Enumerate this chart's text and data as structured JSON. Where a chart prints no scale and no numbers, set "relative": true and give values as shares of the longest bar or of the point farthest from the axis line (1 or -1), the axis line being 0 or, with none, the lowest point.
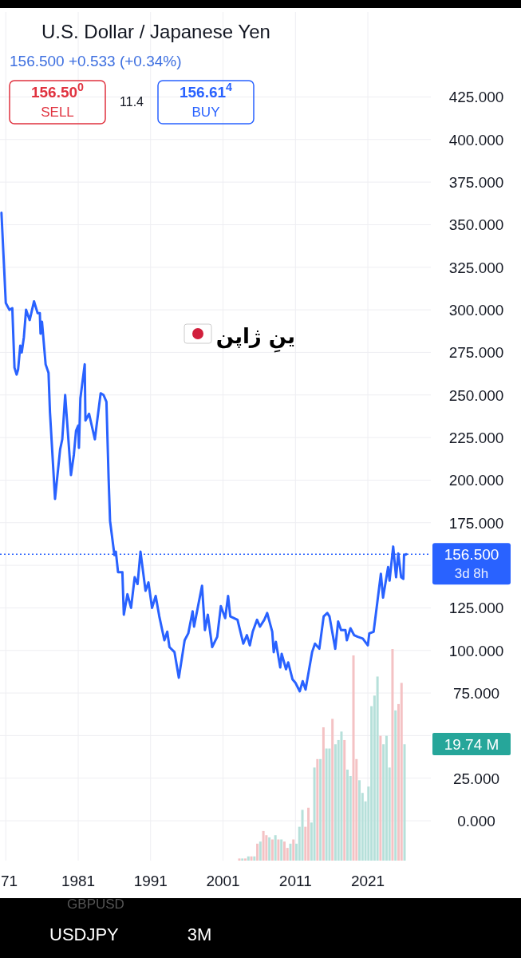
{
  "chart_data": [
    {
      "type": "line",
      "title": "U.S. Dollar / Japanese Yen",
      "subtitle": "156.500 +0.533 (+0.34%)",
      "x": [
        1970.4,
        1971.0,
        1971.5,
        1971.9,
        1972.2,
        1972.5,
        1972.7,
        1973.0,
        1973.2,
        1973.5,
        1973.8,
        1974.3,
        1974.9,
        1975.4,
        1975.7,
        1975.8,
        1976.0,
        1976.5,
        1976.9,
        1977.1,
        1977.8,
        1978.5,
        1978.8,
        1979.2,
        1980.0,
        1980.4,
        1980.7,
        1981.0,
        1981.1,
        1981.3,
        1981.9,
        1982.0,
        1982.5,
        1983.3,
        1984.1,
        1984.5,
        1984.9,
        1985.2,
        1985.4,
        1986.0,
        1986.2,
        1986.5,
        1987.1,
        1987.3,
        1987.8,
        1988.3,
        1988.8,
        1989.2,
        1989.6,
        1990.3,
        1990.7,
        1991.2,
        1991.7,
        1992.2,
        1992.9,
        1993.3,
        1993.6,
        1994.3,
        1994.9,
        1995.7,
        1996.2,
        1996.8,
        1997.0,
        1998.1,
        1998.5,
        1998.9,
        1999.5,
        2000.2,
        2000.7,
        2001.3,
        2001.7,
        2002.0,
        2003.0,
        2003.8,
        2004.3,
        2004.7,
        2005.1,
        2005.7,
        2006.1,
        2006.7,
        2007.1,
        2007.8,
        2008.0,
        2008.3,
        2008.9,
        2009.1,
        2009.7,
        2010.0,
        2010.6,
        2011.0,
        2011.6,
        2012.0,
        2012.4,
        2013.3,
        2013.7,
        2014.3,
        2014.9,
        2015.4,
        2015.7,
        2016.5,
        2016.9,
        2017.3,
        2017.9,
        2018.1,
        2018.6,
        2019.1,
        2019.6,
        2020.3,
        2021.0,
        2021.2,
        2021.8,
        2022.8,
        2023.1,
        2023.8,
        2024.0,
        2024.5,
        2024.9,
        2025.2,
        2025.6,
        2025.9,
        2026.0,
        2026.3
      ],
      "series": [
        {
          "color": "#2962ff",
          "values": [
            357,
            304,
            300,
            301,
            266,
            262,
            265,
            279,
            275,
            284,
            300,
            294,
            305,
            298,
            298,
            286,
            293,
            268,
            263,
            240,
            189,
            218,
            224,
            250,
            203,
            215,
            229,
            232,
            219,
            248,
            268,
            235,
            239,
            224,
            251,
            250,
            246,
            201,
            176,
            156,
            158,
            146,
            146,
            121,
            133,
            125,
            143,
            139,
            158,
            135,
            140,
            125,
            132,
            120,
            106,
            111,
            102,
            99,
            84,
            106,
            110,
            123,
            114,
            138,
            112,
            121,
            102,
            108,
            126,
            119,
            132,
            120,
            118,
            104,
            109,
            103,
            111,
            118,
            114,
            118,
            122,
            111,
            99,
            105,
            90,
            98,
            89,
            93,
            83,
            81,
            76,
            82,
            77,
            99,
            104,
            101,
            120,
            122,
            120,
            101,
            117,
            112,
            112,
            106,
            113,
            109,
            108,
            107,
            103,
            110,
            111,
            145,
            131,
            149,
            141,
            161,
            143,
            157,
            143,
            142,
            156,
            156.5
          ]
        }
      ],
      "xlim": [
        1970.2,
        2029.7
      ],
      "ylim": [
        -23.4,
        474.9
      ],
      "xticks": [
        {
          "value": 1971,
          "label": "71"
        },
        1981,
        1991,
        2001,
        2011,
        2021
      ],
      "yticks": [
        {
          "value": 0,
          "label": "0.000"
        },
        {
          "value": 25,
          "label": "25.000"
        },
        {
          "value": 50,
          "label": null
        },
        {
          "value": 75,
          "label": "75.000"
        },
        {
          "value": 100,
          "label": "100.000"
        },
        {
          "value": 125,
          "label": "125.000"
        },
        {
          "value": 150,
          "label": null
        },
        {
          "value": 175,
          "label": "175.000"
        },
        {
          "value": 200,
          "label": "200.000"
        },
        {
          "value": 225,
          "label": "225.000"
        },
        {
          "value": 250,
          "label": "250.000"
        },
        {
          "value": 275,
          "label": "275.000"
        },
        {
          "value": 300,
          "label": "300.000"
        },
        {
          "value": 325,
          "label": "325.000"
        },
        {
          "value": 350,
          "label": "350.000"
        },
        {
          "value": 375,
          "label": "375.000"
        },
        {
          "value": 400,
          "label": "400.000"
        },
        {
          "value": 425,
          "label": "425.000"
        }
      ],
      "grid": true,
      "ref_lines": [
        {
          "axis": "y",
          "value": 156.5,
          "label": "156.500",
          "color": "#2962ff",
          "line_style": "dotted"
        }
      ],
      "annotations": [
        "156.50$^{0}$",
        "SELL",
        "11.4",
        "156.61$^{4}$",
        "BUY",
        "3d 8h",
        "ینِ ژاپن",
        "USDJPY",
        "3M",
        "GBPUSD"
      ]
    },
    {
      "type": "bar",
      "relative": true,
      "categories": [
        null,
        null,
        null,
        null,
        null,
        null,
        null,
        null,
        null,
        null,
        null,
        null,
        null,
        null,
        null,
        null,
        null,
        null,
        null,
        null,
        null,
        null,
        null,
        null,
        null,
        null,
        null,
        null,
        null,
        null,
        null,
        null,
        null,
        null,
        null,
        null,
        null,
        null,
        null,
        null,
        null,
        null,
        null,
        null,
        null,
        null,
        null,
        null,
        null,
        null,
        null,
        null,
        null,
        null,
        null,
        null
      ],
      "values": [
        0.01,
        0.01,
        0.01,
        0.02,
        0.02,
        0.02,
        0.08,
        0.09,
        0.14,
        0.12,
        0.11,
        0.1,
        0.12,
        0.1,
        0.1,
        0.09,
        0.06,
        0.08,
        0.1,
        0.08,
        0.16,
        0.24,
        0.16,
        0.25,
        0.18,
        0.44,
        0.48,
        0.48,
        0.63,
        0.53,
        0.53,
        0.67,
        0.55,
        0.57,
        0.61,
        0.57,
        0.43,
        0.4,
        0.97,
        0.48,
        0.38,
        0.32,
        0.28,
        0.35,
        0.73,
        0.78,
        0.87,
        0.59,
        0.55,
        0.59,
        0.44,
        1.0,
        0.71,
        0.74,
        0.84,
        0.55
      ],
      "colors": [
        "#f4c2c4",
        "#b6e0da",
        "#f4c2c4",
        "#b6e0da",
        "#f4c2c4",
        "#b6e0da",
        "#f4c2c4",
        "#b6e0da",
        "#f4c2c4",
        "#f4c2c4",
        "#b6e0da",
        "#f4c2c4",
        "#b6e0da",
        "#f4c2c4",
        "#b6e0da",
        "#f4c2c4",
        "#f4c2c4",
        "#b6e0da",
        "#f4c2c4",
        "#b6e0da",
        "#b6e0da",
        "#b6e0da",
        "#f4c2c4",
        "#f4c2c4",
        "#b6e0da",
        "#b6e0da",
        "#f4c2c4",
        "#b6e0da",
        "#f4c2c4",
        "#b6e0da",
        "#b6e0da",
        "#f4c2c4",
        "#b6e0da",
        "#b6e0da",
        "#b6e0da",
        "#f4c2c4",
        "#b6e0da",
        "#b6e0da",
        "#f4c2c4",
        "#f4c2c4",
        "#b6e0da",
        "#b6e0da",
        "#b6e0da",
        "#b6e0da",
        "#b6e0da",
        "#b6e0da",
        "#b6e0da",
        "#f4c2c4",
        "#b6e0da",
        "#b6e0da",
        "#b6e0da",
        "#f4c2c4",
        "#b6e0da",
        "#f4c2c4",
        "#f4c2c4",
        "#b6e0da"
      ],
      "annotations": [
        "19.74 M"
      ]
    }
  ]
}
